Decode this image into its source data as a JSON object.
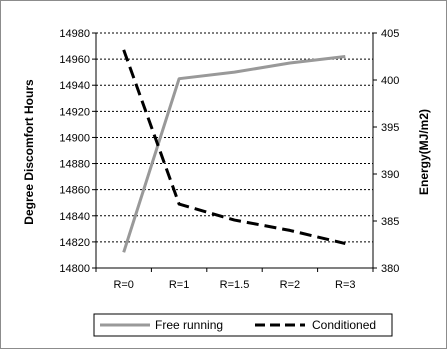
{
  "chart_data": {
    "type": "line",
    "categories": [
      "R=0",
      "R=1",
      "R=1.5",
      "R=2",
      "R=3"
    ],
    "y_left": {
      "label": "Degree Discomfort Hours",
      "min": 14800,
      "max": 14980,
      "step": 20,
      "ticks": [
        "14800",
        "14820",
        "14840",
        "14860",
        "14880",
        "14900",
        "14920",
        "14940",
        "14960",
        "14980"
      ]
    },
    "y_right": {
      "label": "Energy(MJ/m2)",
      "min": 380,
      "max": 405,
      "step": 5,
      "ticks": [
        "380",
        "385",
        "390",
        "395",
        "400",
        "405"
      ]
    },
    "grid": "horizontal dashed",
    "legend_position": "bottom",
    "series": [
      {
        "name": "Free running",
        "axis": "left",
        "values": [
          14812,
          14945,
          14950,
          14957,
          14962
        ],
        "color": "#999999",
        "style": "solid"
      },
      {
        "name": "Conditioned",
        "axis": "right",
        "values": [
          403.2,
          386.8,
          385.1,
          384.0,
          382.6
        ],
        "color": "#000000",
        "style": "dashed"
      }
    ]
  }
}
